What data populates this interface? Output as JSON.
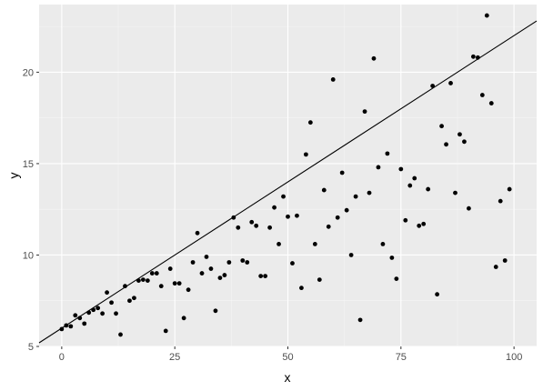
{
  "chart_data": {
    "type": "scatter",
    "title": "",
    "xlabel": "x",
    "ylabel": "y",
    "xlim": [
      -5,
      105
    ],
    "ylim": [
      5,
      23.7
    ],
    "x_ticks": [
      0,
      25,
      50,
      75,
      100
    ],
    "y_ticks": [
      5,
      10,
      15,
      20
    ],
    "grid": true,
    "colors": {
      "panel": "#ebebeb",
      "grid_major": "#ffffff",
      "grid_minor": "#f5f5f5",
      "points": "#000000",
      "line": "#000000"
    },
    "reference_line": {
      "intercept": 6,
      "slope": 0.16
    },
    "points": [
      [
        0,
        5.95
      ],
      [
        1,
        6.15
      ],
      [
        2,
        6.1
      ],
      [
        3,
        6.7
      ],
      [
        4,
        6.55
      ],
      [
        5,
        6.25
      ],
      [
        6,
        6.85
      ],
      [
        7,
        7.0
      ],
      [
        8,
        7.1
      ],
      [
        9,
        6.8
      ],
      [
        10,
        7.95
      ],
      [
        11,
        7.4
      ],
      [
        12,
        6.8
      ],
      [
        13,
        5.65
      ],
      [
        14,
        8.3
      ],
      [
        15,
        7.5
      ],
      [
        16,
        7.65
      ],
      [
        17,
        8.6
      ],
      [
        18,
        8.65
      ],
      [
        19,
        8.6
      ],
      [
        20,
        9.0
      ],
      [
        21,
        9.0
      ],
      [
        22,
        8.3
      ],
      [
        23,
        5.85
      ],
      [
        24,
        9.25
      ],
      [
        25,
        8.45
      ],
      [
        26,
        8.45
      ],
      [
        27,
        6.55
      ],
      [
        28,
        8.1
      ],
      [
        29,
        9.6
      ],
      [
        30,
        11.2
      ],
      [
        31,
        9.0
      ],
      [
        32,
        9.9
      ],
      [
        33,
        9.25
      ],
      [
        34,
        6.95
      ],
      [
        35,
        8.75
      ],
      [
        36,
        8.9
      ],
      [
        37,
        9.6
      ],
      [
        38,
        12.05
      ],
      [
        39,
        11.5
      ],
      [
        40,
        9.7
      ],
      [
        41,
        9.6
      ],
      [
        42,
        11.8
      ],
      [
        43,
        11.6
      ],
      [
        44,
        8.85
      ],
      [
        45,
        8.85
      ],
      [
        46,
        11.5
      ],
      [
        47,
        12.6
      ],
      [
        48,
        10.6
      ],
      [
        49,
        13.2
      ],
      [
        50,
        12.1
      ],
      [
        51,
        9.55
      ],
      [
        52,
        12.15
      ],
      [
        53,
        8.2
      ],
      [
        54,
        15.5
      ],
      [
        55,
        17.25
      ],
      [
        56,
        10.6
      ],
      [
        57,
        8.65
      ],
      [
        58,
        13.55
      ],
      [
        59,
        11.55
      ],
      [
        60,
        19.6
      ],
      [
        61,
        12.05
      ],
      [
        62,
        14.5
      ],
      [
        63,
        12.45
      ],
      [
        64,
        10.0
      ],
      [
        65,
        13.2
      ],
      [
        66,
        6.45
      ],
      [
        67,
        17.85
      ],
      [
        68,
        13.4
      ],
      [
        69,
        20.75
      ],
      [
        70,
        14.8
      ],
      [
        71,
        10.6
      ],
      [
        72,
        15.55
      ],
      [
        73,
        9.85
      ],
      [
        74,
        8.7
      ],
      [
        75,
        14.7
      ],
      [
        76,
        11.9
      ],
      [
        77,
        13.8
      ],
      [
        78,
        14.2
      ],
      [
        79,
        11.6
      ],
      [
        80,
        11.7
      ],
      [
        81,
        13.6
      ],
      [
        82,
        19.25
      ],
      [
        83,
        7.85
      ],
      [
        84,
        17.05
      ],
      [
        85,
        16.05
      ],
      [
        86,
        19.4
      ],
      [
        87,
        13.4
      ],
      [
        88,
        16.6
      ],
      [
        89,
        16.2
      ],
      [
        90,
        12.55
      ],
      [
        91,
        20.85
      ],
      [
        92,
        20.8
      ],
      [
        93,
        18.75
      ],
      [
        94,
        23.1
      ],
      [
        95,
        18.3
      ],
      [
        96,
        9.35
      ],
      [
        97,
        12.95
      ],
      [
        98,
        9.7
      ],
      [
        99,
        13.6
      ]
    ]
  }
}
